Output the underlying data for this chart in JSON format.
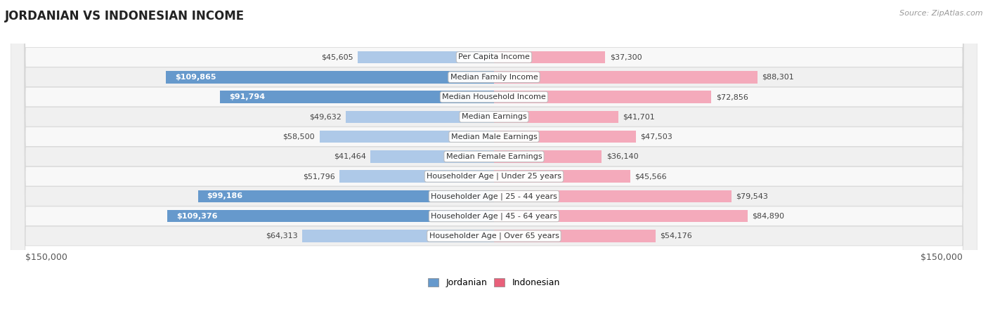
{
  "title": "JORDANIAN VS INDONESIAN INCOME",
  "source": "Source: ZipAtlas.com",
  "categories": [
    "Per Capita Income",
    "Median Family Income",
    "Median Household Income",
    "Median Earnings",
    "Median Male Earnings",
    "Median Female Earnings",
    "Householder Age | Under 25 years",
    "Householder Age | 25 - 44 years",
    "Householder Age | 45 - 64 years",
    "Householder Age | Over 65 years"
  ],
  "jordanian": [
    45605,
    109865,
    91794,
    49632,
    58500,
    41464,
    51796,
    99186,
    109376,
    64313
  ],
  "indonesian": [
    37300,
    88301,
    72856,
    41701,
    47503,
    36140,
    45566,
    79543,
    84890,
    54176
  ],
  "max_value": 150000,
  "jordanian_color_light": "#aec9e8",
  "jordanian_color_dark": "#6699cc",
  "indonesian_color_light": "#f4aabb",
  "indonesian_color_dark": "#e8607a",
  "bar_height": 0.62,
  "label_fontsize": 8.0,
  "value_fontsize": 8.0,
  "title_fontsize": 12,
  "legend_fontsize": 9,
  "axis_label_fontsize": 9,
  "bg_color": "#ffffff",
  "white_text_threshold": 70000,
  "row_colors": [
    "#f8f8f8",
    "#f0f0f0"
  ]
}
